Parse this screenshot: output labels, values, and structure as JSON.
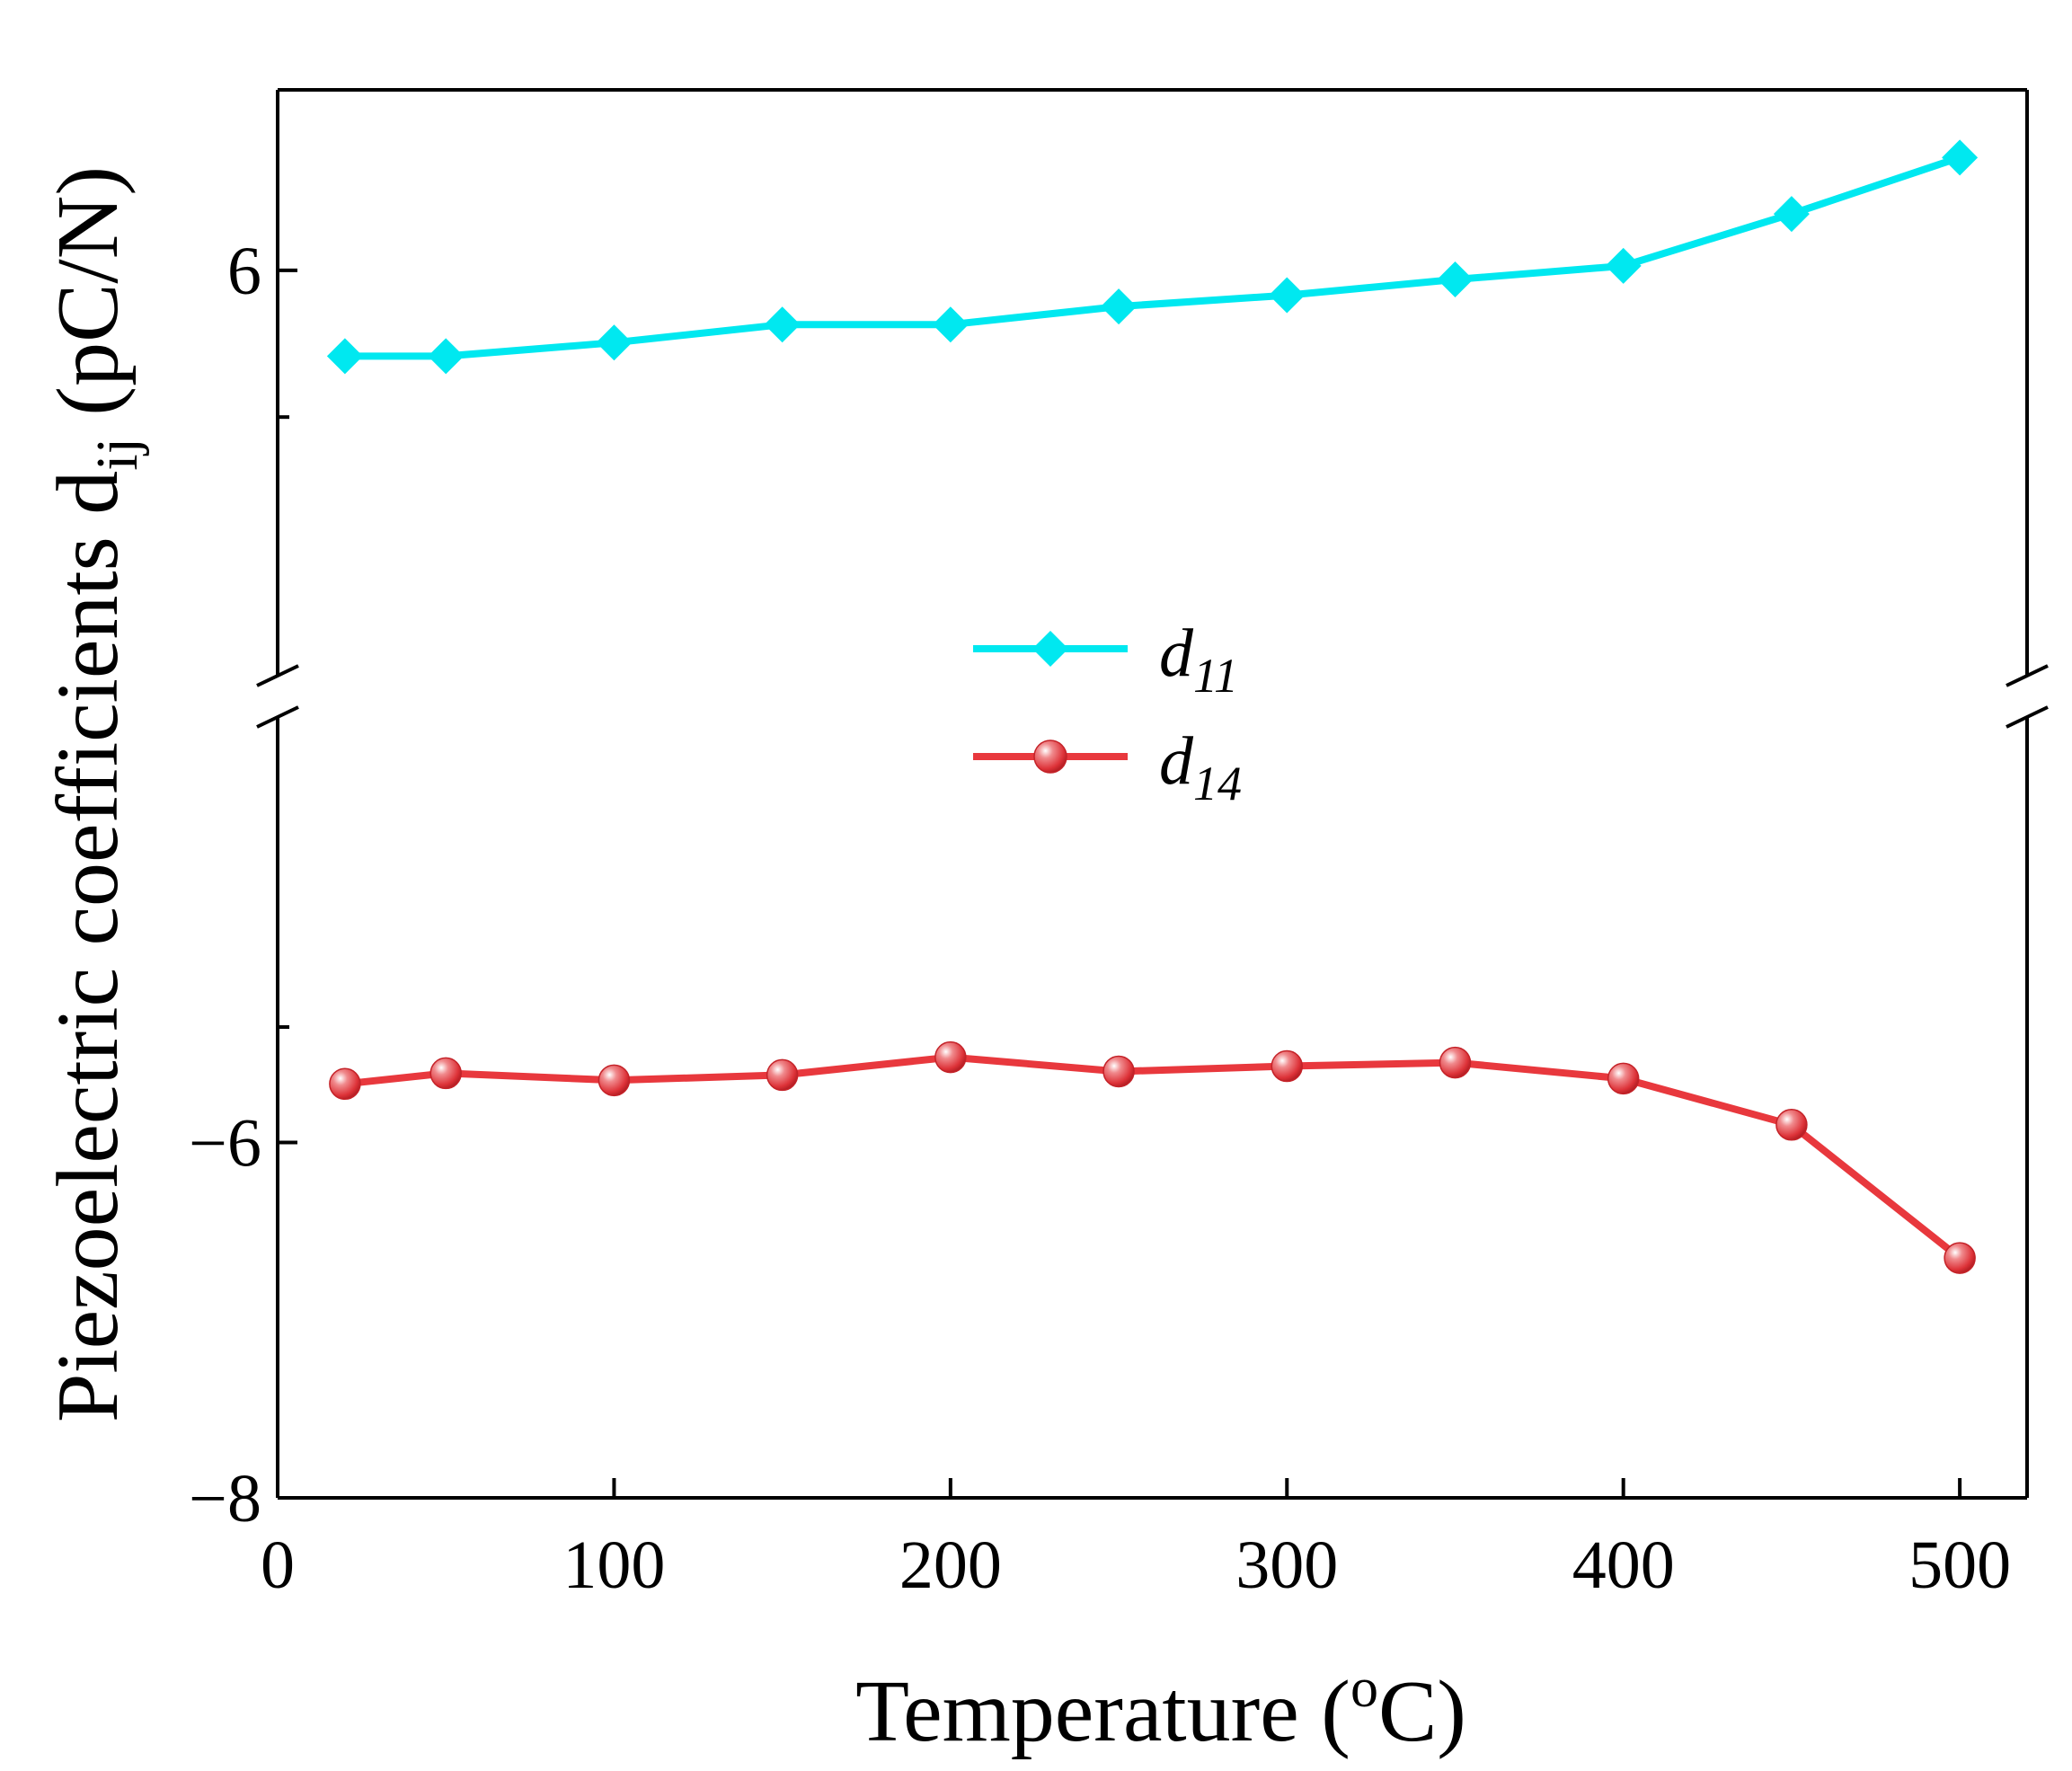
{
  "chart_data": {
    "type": "line",
    "xlabel_main": "Temperature (",
    "xlabel_sup": "o",
    "xlabel_end": "C)",
    "ylabel_main": "Piezoelectric coefficients d",
    "ylabel_sub": "ij",
    "ylabel_end": " (pC/N)",
    "xlim": [
      0,
      520
    ],
    "x_ticks": [
      0,
      100,
      200,
      300,
      400,
      500
    ],
    "x_tick_labels": [
      "0",
      "100",
      "200",
      "300",
      "400",
      "500"
    ],
    "broken_axis": true,
    "upper_panel": {
      "ylim": [
        4.2,
        6.8
      ],
      "major_ticks": [
        6
      ],
      "minor_ticks": [
        5.35
      ],
      "tick_labels": [
        "6"
      ]
    },
    "lower_panel": {
      "ylim": [
        -8,
        -3.6
      ],
      "major_ticks": [
        -6,
        -8
      ],
      "minor_ticks": [
        -5.35
      ],
      "tick_labels": [
        "−6",
        "−8"
      ]
    },
    "series": [
      {
        "name": "d11",
        "symbol": "d",
        "subscript": "11",
        "panel": "upper",
        "color": "#00e8f0",
        "marker": "diamond",
        "x": [
          20,
          50,
          100,
          150,
          200,
          250,
          300,
          350,
          400,
          450,
          500
        ],
        "values": [
          5.62,
          5.62,
          5.68,
          5.76,
          5.76,
          5.84,
          5.89,
          5.96,
          6.02,
          6.25,
          6.5
        ]
      },
      {
        "name": "d14",
        "symbol": "d",
        "subscript": "14",
        "panel": "lower",
        "color": "#e8383d",
        "marker": "sphere",
        "x": [
          20,
          50,
          100,
          150,
          200,
          250,
          300,
          350,
          400,
          450,
          500
        ],
        "values": [
          -5.67,
          -5.61,
          -5.65,
          -5.62,
          -5.52,
          -5.6,
          -5.57,
          -5.55,
          -5.64,
          -5.9,
          -6.65
        ]
      }
    ]
  }
}
